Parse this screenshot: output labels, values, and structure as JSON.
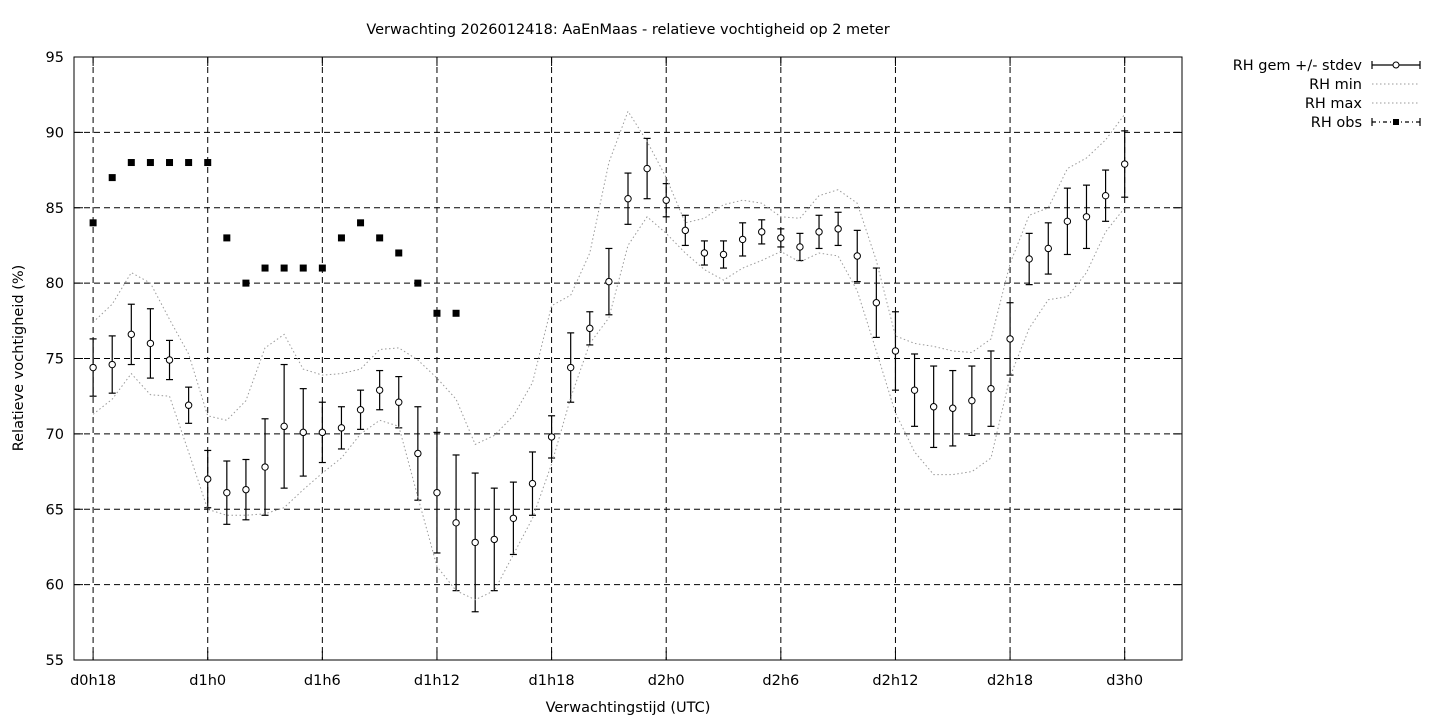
{
  "chart_data": {
    "type": "line",
    "title": "Verwachting 2026012418: AaEnMaas - relatieve vochtigheid op 2 meter",
    "xlabel": "Verwachtingstijd (UTC)",
    "ylabel": "Relatieve vochtigheid (%)",
    "xlim": [
      -1,
      57
    ],
    "ylim": [
      55,
      95
    ],
    "x_ticks": [
      {
        "x": 0,
        "label": "d0h18"
      },
      {
        "x": 6,
        "label": "d1h0"
      },
      {
        "x": 12,
        "label": "d1h6"
      },
      {
        "x": 18,
        "label": "d1h12"
      },
      {
        "x": 24,
        "label": "d1h18"
      },
      {
        "x": 30,
        "label": "d2h0"
      },
      {
        "x": 36,
        "label": "d2h6"
      },
      {
        "x": 42,
        "label": "d2h12"
      },
      {
        "x": 48,
        "label": "d2h18"
      },
      {
        "x": 54,
        "label": "d3h0"
      }
    ],
    "y_ticks": [
      55,
      60,
      65,
      70,
      75,
      80,
      85,
      90,
      95
    ],
    "grid": true,
    "legend_position": "outside-top-right",
    "series": [
      {
        "name": "RH gem +/- stdev",
        "style": "errorbar-circle",
        "x": [
          0,
          1,
          2,
          3,
          4,
          5,
          6,
          7,
          8,
          9,
          10,
          11,
          12,
          13,
          14,
          15,
          16,
          17,
          18,
          19,
          20,
          21,
          22,
          23,
          24,
          25,
          26,
          27,
          28,
          29,
          30,
          31,
          32,
          33,
          34,
          35,
          36,
          37,
          38,
          39,
          40,
          41,
          42,
          43,
          44,
          45,
          46,
          47,
          48,
          49,
          50,
          51,
          52,
          53,
          54
        ],
        "y": [
          74.4,
          74.6,
          76.6,
          76.0,
          74.9,
          71.9,
          67.0,
          66.1,
          66.3,
          67.8,
          70.5,
          70.1,
          70.1,
          70.4,
          71.6,
          72.9,
          72.1,
          68.7,
          66.1,
          64.1,
          62.8,
          63.0,
          64.4,
          66.7,
          69.8,
          74.4,
          77.0,
          80.1,
          85.6,
          87.6,
          85.5,
          83.5,
          82.0,
          81.9,
          82.9,
          83.4,
          83.0,
          82.4,
          83.4,
          83.6,
          81.8,
          78.7,
          75.5,
          72.9,
          71.8,
          71.7,
          72.2,
          73.0,
          76.3,
          81.6,
          82.3,
          84.1,
          84.4,
          85.8,
          87.9
        ],
        "stdev": [
          1.9,
          1.9,
          2.0,
          2.3,
          1.3,
          1.2,
          1.9,
          2.1,
          2.0,
          3.2,
          4.1,
          2.9,
          2.0,
          1.4,
          1.3,
          1.3,
          1.7,
          3.1,
          4.0,
          4.5,
          4.6,
          3.4,
          2.4,
          2.1,
          1.4,
          2.3,
          1.1,
          2.2,
          1.7,
          2.0,
          1.1,
          1.0,
          0.8,
          0.9,
          1.1,
          0.8,
          0.6,
          0.9,
          1.1,
          1.1,
          1.7,
          2.3,
          2.6,
          2.4,
          2.7,
          2.5,
          2.3,
          2.5,
          2.4,
          1.7,
          1.7,
          2.2,
          2.1,
          1.7,
          2.2
        ]
      },
      {
        "name": "RH min",
        "style": "dotted",
        "x": [
          0,
          1,
          2,
          3,
          4,
          5,
          6,
          7,
          8,
          9,
          10,
          11,
          12,
          13,
          14,
          15,
          16,
          17,
          18,
          19,
          20,
          21,
          22,
          23,
          24,
          25,
          26,
          27,
          28,
          29,
          30,
          31,
          32,
          33,
          34,
          35,
          36,
          37,
          38,
          39,
          40,
          41,
          42,
          43,
          44,
          45,
          46,
          47,
          48,
          49,
          50,
          51,
          52,
          53,
          54
        ],
        "y": [
          71.3,
          72.3,
          74.0,
          72.6,
          72.5,
          68.8,
          65.0,
          64.6,
          64.6,
          64.7,
          65.1,
          66.3,
          67.4,
          68.4,
          70.0,
          70.9,
          70.5,
          65.8,
          61.2,
          59.6,
          59.0,
          59.6,
          62.0,
          64.4,
          68.0,
          72.4,
          76.0,
          77.7,
          82.5,
          84.4,
          83.3,
          82.0,
          80.9,
          80.2,
          81.0,
          81.5,
          82.1,
          81.4,
          82.0,
          81.8,
          79.5,
          75.5,
          71.4,
          68.8,
          67.3,
          67.3,
          67.5,
          68.4,
          73.8,
          77.0,
          78.9,
          79.1,
          80.7,
          83.4,
          85.0
        ]
      },
      {
        "name": "RH max",
        "style": "dotted",
        "x": [
          0,
          1,
          2,
          3,
          4,
          5,
          6,
          7,
          8,
          9,
          10,
          11,
          12,
          13,
          14,
          15,
          16,
          17,
          18,
          19,
          20,
          21,
          22,
          23,
          24,
          25,
          26,
          27,
          28,
          29,
          30,
          31,
          32,
          33,
          34,
          35,
          36,
          37,
          38,
          39,
          40,
          41,
          42,
          43,
          44,
          45,
          46,
          47,
          48,
          49,
          50,
          51,
          52,
          53,
          54
        ],
        "y": [
          77.4,
          78.6,
          80.7,
          80.0,
          77.6,
          75.3,
          71.2,
          70.9,
          72.2,
          75.7,
          76.6,
          74.3,
          73.9,
          74.0,
          74.3,
          75.6,
          75.7,
          74.9,
          73.7,
          72.3,
          69.3,
          69.9,
          71.2,
          73.4,
          78.5,
          79.2,
          82.0,
          88.0,
          91.4,
          89.4,
          87.0,
          84.0,
          84.3,
          85.2,
          85.5,
          85.3,
          84.4,
          84.3,
          85.8,
          86.2,
          85.3,
          81.5,
          76.5,
          76.0,
          75.8,
          75.5,
          75.4,
          76.3,
          81.3,
          84.5,
          85.0,
          87.6,
          88.3,
          89.5,
          91.2
        ]
      },
      {
        "name": "RH obs",
        "style": "square-markers",
        "x": [
          0,
          1,
          2,
          3,
          4,
          5,
          6,
          7,
          8,
          9,
          10,
          11,
          12,
          13,
          14,
          15,
          16,
          17,
          18,
          19
        ],
        "y": [
          84,
          87,
          88,
          88,
          88,
          88,
          88,
          83,
          80,
          81,
          81,
          81,
          81,
          83,
          84,
          83,
          82,
          80,
          78,
          78
        ]
      }
    ]
  }
}
